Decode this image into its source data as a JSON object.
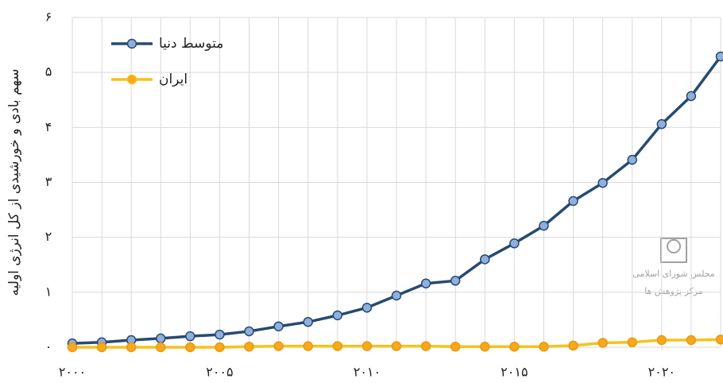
{
  "chart_data": {
    "type": "line",
    "y_label": "سهم بادی و خورشیدی از کل انرژی اولیه",
    "x": [
      2000,
      2001,
      2002,
      2003,
      2004,
      2005,
      2006,
      2007,
      2008,
      2009,
      2010,
      2011,
      2012,
      2013,
      2014,
      2015,
      2016,
      2017,
      2018,
      2019,
      2020,
      2021,
      2022
    ],
    "series": [
      {
        "name": "متوسط دنیا",
        "color": "#264a72",
        "marker_color": "#8fb0dc",
        "values": [
          0.07,
          0.09,
          0.13,
          0.16,
          0.2,
          0.23,
          0.29,
          0.38,
          0.46,
          0.58,
          0.72,
          0.94,
          1.16,
          1.21,
          1.6,
          1.89,
          2.21,
          2.66,
          2.99,
          3.41,
          4.06,
          4.57,
          5.29
        ]
      },
      {
        "name": "ایران",
        "color": "#f7c21b",
        "marker_color": "#f7a81b",
        "values": [
          0,
          0,
          0,
          0,
          0,
          0,
          0.01,
          0.02,
          0.02,
          0.02,
          0.02,
          0.02,
          0.02,
          0.01,
          0.01,
          0.01,
          0.01,
          0.03,
          0.08,
          0.09,
          0.13,
          0.13,
          0.14
        ]
      }
    ],
    "xlim": [
      2000,
      2022
    ],
    "xticks": [
      {
        "value": 2000,
        "label": "۲۰۰۰"
      },
      {
        "value": 2005,
        "label": "۲۰۰۵"
      },
      {
        "value": 2010,
        "label": "۲۰۱۰"
      },
      {
        "value": 2015,
        "label": "۲۰۱۵"
      },
      {
        "value": 2020,
        "label": "۲۰۲۰"
      }
    ],
    "ylim": [
      0,
      6
    ],
    "yticks": [
      {
        "value": 0,
        "label": "۰"
      },
      {
        "value": 1,
        "label": "۱"
      },
      {
        "value": 2,
        "label": "۲"
      },
      {
        "value": 3,
        "label": "۳"
      },
      {
        "value": 4,
        "label": "۴"
      },
      {
        "value": 5,
        "label": "۵"
      },
      {
        "value": 6,
        "label": "۶"
      }
    ],
    "grid": true,
    "legend": "top-left",
    "watermark": [
      "مجلس شورای اسلامی",
      "مرکز پژوهش ها"
    ]
  }
}
